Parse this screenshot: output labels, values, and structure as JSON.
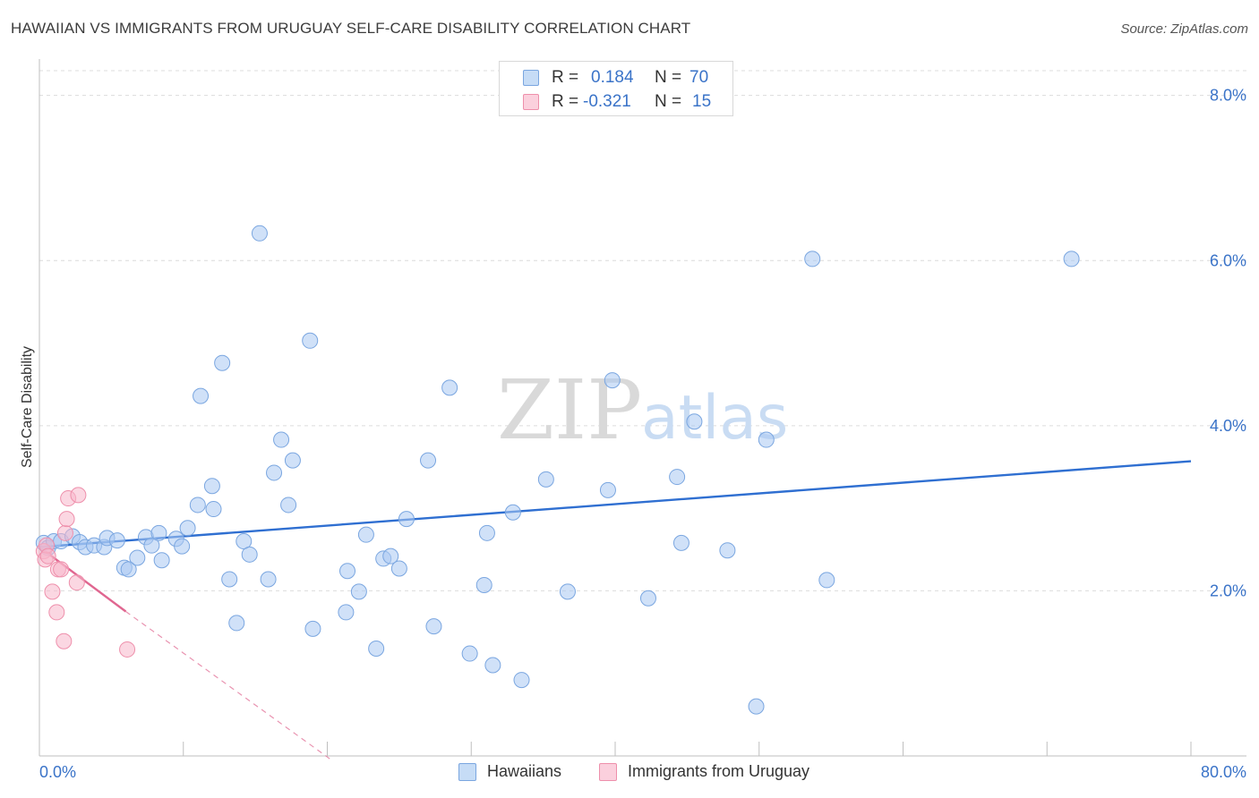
{
  "title": "HAWAIIAN VS IMMIGRANTS FROM URUGUAY SELF-CARE DISABILITY CORRELATION CHART",
  "source": "Source: ZipAtlas.com",
  "watermark": {
    "zip": "ZIP",
    "atlas": "atlas"
  },
  "legend": {
    "rows": [
      {
        "r_label": "R =",
        "r_value": "0.184",
        "n_label": "N =",
        "n_value": "70",
        "color": "#a9c9f2"
      },
      {
        "r_label": "R =",
        "r_value": "-0.321",
        "n_label": "N =",
        "n_value": "15",
        "color": "#f7b7ca"
      }
    ]
  },
  "bottom_legend": [
    {
      "label": "Hawaiians",
      "color": "#a9c9f2"
    },
    {
      "label": "Immigrants from Uruguay",
      "color": "#f7b7ca"
    }
  ],
  "colors": {
    "blue_fill": "#a9c9f2",
    "blue_stroke": "#7aa6e0",
    "blue_line": "#2f6fd1",
    "pink_fill": "#f7b7ca",
    "pink_stroke": "#ee8fab",
    "pink_line": "#e06690",
    "axis_label": "#3a73c8",
    "grid": "#dcdcdc"
  },
  "chart_data": {
    "type": "scatter",
    "title": "HAWAIIAN VS IMMIGRANTS FROM URUGUAY SELF-CARE DISABILITY CORRELATION CHART",
    "xlabel": "",
    "ylabel": "Self-Care Disability",
    "xlim": [
      0,
      80
    ],
    "ylim": [
      0,
      8.3
    ],
    "x_tick_labels": [
      "0.0%",
      "80.0%"
    ],
    "y_ticks": [
      2,
      4,
      6,
      8
    ],
    "y_tick_labels": [
      "2.0%",
      "4.0%",
      "6.0%",
      "8.0%"
    ],
    "grid": true,
    "series": [
      {
        "name": "Hawaiians",
        "points": [
          [
            0.3,
            2.58
          ],
          [
            0.6,
            2.52
          ],
          [
            1.0,
            2.6
          ],
          [
            1.5,
            2.6
          ],
          [
            2.3,
            2.66
          ],
          [
            2.8,
            2.59
          ],
          [
            3.2,
            2.53
          ],
          [
            3.8,
            2.55
          ],
          [
            4.5,
            2.53
          ],
          [
            4.7,
            2.64
          ],
          [
            5.4,
            2.61
          ],
          [
            5.9,
            2.28
          ],
          [
            6.2,
            2.26
          ],
          [
            6.8,
            2.4
          ],
          [
            7.4,
            2.65
          ],
          [
            7.8,
            2.55
          ],
          [
            8.3,
            2.7
          ],
          [
            8.5,
            2.37
          ],
          [
            9.5,
            2.63
          ],
          [
            9.9,
            2.54
          ],
          [
            10.3,
            2.76
          ],
          [
            11.0,
            3.04
          ],
          [
            11.2,
            4.36
          ],
          [
            12.0,
            3.27
          ],
          [
            12.1,
            2.99
          ],
          [
            12.7,
            4.76
          ],
          [
            13.2,
            2.14
          ],
          [
            13.7,
            1.61
          ],
          [
            14.2,
            2.6
          ],
          [
            14.6,
            2.44
          ],
          [
            15.3,
            6.33
          ],
          [
            15.9,
            2.14
          ],
          [
            16.3,
            3.43
          ],
          [
            16.8,
            3.83
          ],
          [
            17.3,
            3.04
          ],
          [
            17.6,
            3.58
          ],
          [
            18.8,
            5.03
          ],
          [
            19.0,
            1.54
          ],
          [
            21.3,
            1.74
          ],
          [
            21.4,
            2.24
          ],
          [
            22.2,
            1.99
          ],
          [
            22.7,
            2.68
          ],
          [
            23.4,
            1.3
          ],
          [
            23.9,
            2.39
          ],
          [
            24.4,
            2.42
          ],
          [
            25.0,
            2.27
          ],
          [
            25.5,
            2.87
          ],
          [
            27.0,
            3.58
          ],
          [
            27.4,
            1.57
          ],
          [
            28.5,
            4.46
          ],
          [
            29.9,
            1.24
          ],
          [
            30.9,
            2.07
          ],
          [
            31.1,
            2.7
          ],
          [
            31.5,
            1.1
          ],
          [
            32.9,
            2.95
          ],
          [
            33.5,
            0.92
          ],
          [
            35.2,
            3.35
          ],
          [
            36.7,
            1.99
          ],
          [
            39.5,
            3.22
          ],
          [
            39.8,
            4.55
          ],
          [
            42.3,
            1.91
          ],
          [
            44.3,
            3.38
          ],
          [
            44.6,
            2.58
          ],
          [
            45.5,
            4.05
          ],
          [
            47.8,
            2.49
          ],
          [
            49.8,
            0.6
          ],
          [
            50.5,
            3.83
          ],
          [
            53.7,
            6.02
          ],
          [
            54.7,
            2.13
          ],
          [
            71.7,
            6.02
          ]
        ]
      },
      {
        "name": "Immigrants from Uruguay",
        "points": [
          [
            0.3,
            2.48
          ],
          [
            0.4,
            2.38
          ],
          [
            0.5,
            2.55
          ],
          [
            0.6,
            2.42
          ],
          [
            0.9,
            1.99
          ],
          [
            1.2,
            1.74
          ],
          [
            1.3,
            2.26
          ],
          [
            1.5,
            2.26
          ],
          [
            1.7,
            1.39
          ],
          [
            1.8,
            2.7
          ],
          [
            1.9,
            2.87
          ],
          [
            2.0,
            3.12
          ],
          [
            2.6,
            2.1
          ],
          [
            2.7,
            3.16
          ],
          [
            6.1,
            1.29
          ]
        ]
      }
    ],
    "trendlines": [
      {
        "series": "Hawaiians",
        "x": [
          0,
          80
        ],
        "y": [
          2.53,
          3.57
        ],
        "style": "solid"
      },
      {
        "series": "Immigrants from Uruguay",
        "x": [
          0,
          6.0
        ],
        "y": [
          2.53,
          1.75
        ],
        "style": "solid"
      },
      {
        "series": "Immigrants from Uruguay",
        "x": [
          6.0,
          20.3
        ],
        "y": [
          1.75,
          -0.05
        ],
        "style": "dashed"
      }
    ]
  }
}
